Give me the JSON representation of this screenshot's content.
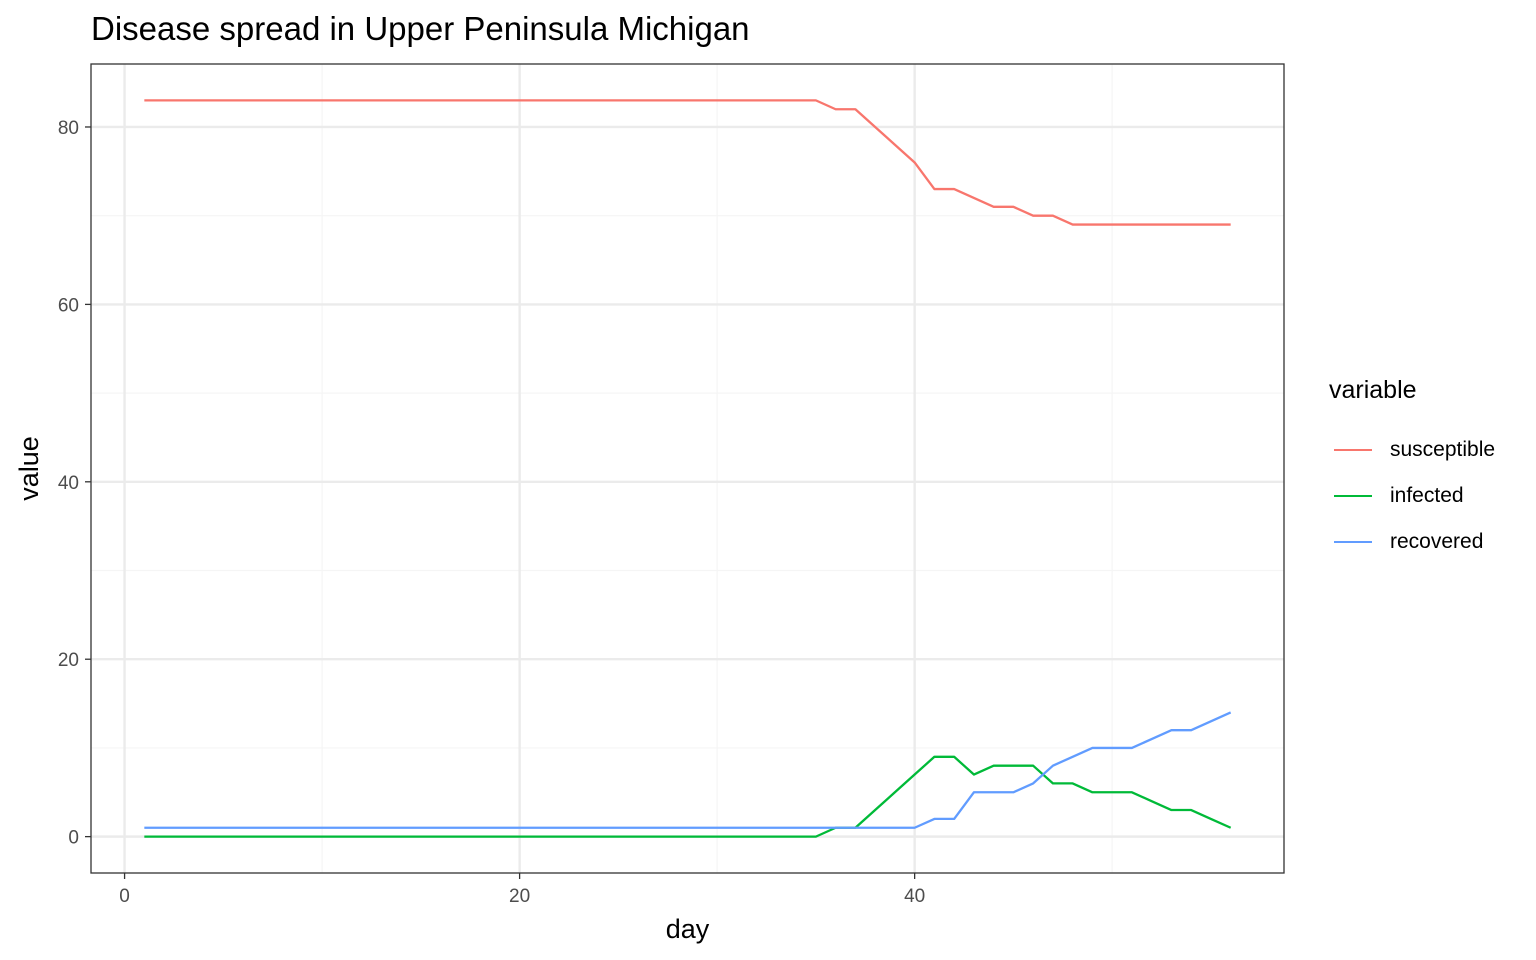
{
  "chart_data": {
    "type": "line",
    "title": "Disease spread in Upper Peninsula Michigan",
    "xlabel": "day",
    "ylabel": "value",
    "xlim": [
      -1.7,
      58.7
    ],
    "ylim": [
      -4.1,
      87.1
    ],
    "x_ticks": [
      0,
      20,
      40
    ],
    "y_ticks": [
      0,
      20,
      40,
      60,
      80
    ],
    "x_minor_ticks": [
      10,
      30,
      50
    ],
    "y_minor_ticks": [
      10,
      30,
      50,
      70
    ],
    "grid": true,
    "legend_title": "variable",
    "legend_position": "right",
    "x": [
      1,
      2,
      3,
      4,
      5,
      6,
      7,
      8,
      9,
      10,
      11,
      12,
      13,
      14,
      15,
      16,
      17,
      18,
      19,
      20,
      21,
      22,
      23,
      24,
      25,
      26,
      27,
      28,
      29,
      30,
      31,
      32,
      33,
      34,
      35,
      36,
      37,
      38,
      39,
      40,
      41,
      42,
      43,
      44,
      45,
      46,
      47,
      48,
      49,
      50,
      51,
      52,
      53,
      54,
      55,
      56
    ],
    "series": [
      {
        "name": "susceptible",
        "color": "#F8766D",
        "values": [
          83,
          83,
          83,
          83,
          83,
          83,
          83,
          83,
          83,
          83,
          83,
          83,
          83,
          83,
          83,
          83,
          83,
          83,
          83,
          83,
          83,
          83,
          83,
          83,
          83,
          83,
          83,
          83,
          83,
          83,
          83,
          83,
          83,
          83,
          83,
          82,
          82,
          80,
          78,
          76,
          73,
          73,
          72,
          71,
          71,
          70,
          70,
          69,
          69,
          69,
          69,
          69,
          69,
          69,
          69,
          69
        ]
      },
      {
        "name": "infected",
        "color": "#00BA38",
        "values": [
          0,
          0,
          0,
          0,
          0,
          0,
          0,
          0,
          0,
          0,
          0,
          0,
          0,
          0,
          0,
          0,
          0,
          0,
          0,
          0,
          0,
          0,
          0,
          0,
          0,
          0,
          0,
          0,
          0,
          0,
          0,
          0,
          0,
          0,
          0,
          1,
          1,
          3,
          5,
          7,
          9,
          9,
          7,
          8,
          8,
          8,
          6,
          6,
          5,
          5,
          5,
          4,
          3,
          3,
          2,
          1
        ]
      },
      {
        "name": "recovered",
        "color": "#619CFF",
        "values": [
          1,
          1,
          1,
          1,
          1,
          1,
          1,
          1,
          1,
          1,
          1,
          1,
          1,
          1,
          1,
          1,
          1,
          1,
          1,
          1,
          1,
          1,
          1,
          1,
          1,
          1,
          1,
          1,
          1,
          1,
          1,
          1,
          1,
          1,
          1,
          1,
          1,
          1,
          1,
          1,
          2,
          2,
          5,
          5,
          5,
          6,
          8,
          9,
          10,
          10,
          10,
          11,
          12,
          12,
          13,
          14
        ]
      }
    ]
  },
  "styles": {
    "panel_border": "#333333",
    "grid_major": "#ebebeb",
    "grid_minor": "#f5f5f5",
    "tick_color": "#333333",
    "tick_label_color": "#4d4d4d"
  }
}
